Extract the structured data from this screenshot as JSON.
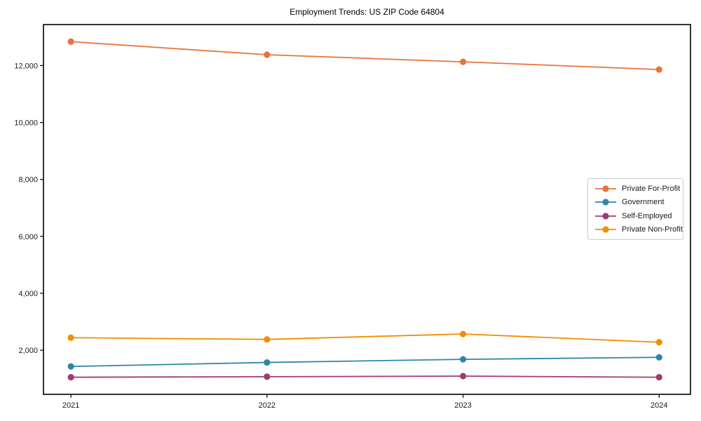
{
  "title": "Employment Trends: US ZIP Code 64804",
  "chart_data": {
    "type": "line",
    "x": [
      2021,
      2022,
      2023,
      2024
    ],
    "xtick_labels": [
      "2021",
      "2022",
      "2023",
      "2024"
    ],
    "series": [
      {
        "name": "Private For-Profit",
        "color": "#E8743B",
        "values": [
          12840,
          12380,
          12130,
          11860
        ]
      },
      {
        "name": "Government",
        "color": "#2E86AB",
        "values": [
          1430,
          1570,
          1680,
          1750
        ]
      },
      {
        "name": "Self-Employed",
        "color": "#A23B72",
        "values": [
          1050,
          1070,
          1090,
          1050
        ]
      },
      {
        "name": "Private Non-Profit",
        "color": "#F18F01",
        "values": [
          2440,
          2380,
          2570,
          2280
        ]
      }
    ],
    "yticks": [
      2000,
      4000,
      6000,
      8000,
      10000,
      12000
    ],
    "ytick_labels": [
      "2,000",
      "4,000",
      "6,000",
      "8,000",
      "10,000",
      "12,000"
    ],
    "xlim": [
      2020.86,
      2024.16
    ],
    "ylim": [
      450,
      13440
    ],
    "grid": false,
    "legend_position": "center right",
    "frame_color": "#000000"
  }
}
